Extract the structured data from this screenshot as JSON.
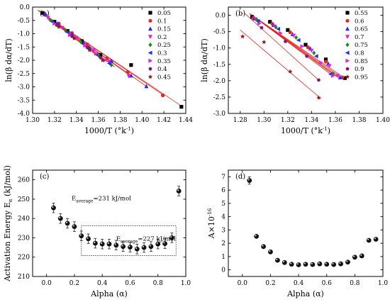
{
  "chart_data": [
    {
      "id": "a",
      "type": "scatter",
      "panel_label": "(a)",
      "xlabel": "1000/T (°k",
      "xlabel_sup": "-1",
      "xlabel_end": ")",
      "ylabel": "ln(β dα/dT)",
      "xlim": [
        1.3,
        1.44
      ],
      "ylim": [
        -4.0,
        0.0
      ],
      "xticks": [
        "1.30",
        "1.32",
        "1.34",
        "1.36",
        "1.38",
        "1.40",
        "1.42",
        "1.44"
      ],
      "yticks": [
        "0.0",
        "-0.5",
        "-1.0",
        "-1.5",
        "-2.0",
        "-2.5",
        "-3.0",
        "-3.5",
        "-4.0"
      ],
      "legend_position": "top-right",
      "series": [
        {
          "name": "0.05",
          "color": "#000000",
          "marker": "square",
          "x": [
            1.309,
            1.32,
            1.332,
            1.345,
            1.362,
            1.39,
            1.436
          ],
          "y": [
            -0.22,
            -0.55,
            -0.9,
            -1.28,
            -1.8,
            -2.18,
            -3.75
          ],
          "fit": [
            [
              1.305,
              -0.12
            ],
            [
              1.436,
              -3.72
            ]
          ]
        },
        {
          "name": "0.1",
          "color": "#e8261f",
          "marker": "circle",
          "x": [
            1.312,
            1.324,
            1.336,
            1.35,
            1.368,
            1.387,
            1.419
          ],
          "y": [
            -0.3,
            -0.62,
            -0.98,
            -1.4,
            -1.92,
            -2.45,
            -3.32
          ],
          "fit": [
            [
              1.305,
              -0.12
            ],
            [
              1.42,
              -3.32
            ]
          ]
        },
        {
          "name": "0.15",
          "color": "#1f2fe8",
          "marker": "triangle-up",
          "x": [
            1.311,
            1.323,
            1.336,
            1.352,
            1.372,
            1.39,
            1.404
          ],
          "y": [
            -0.27,
            -0.62,
            -1.02,
            -1.52,
            -2.02,
            -2.58,
            -2.98
          ],
          "fit": [
            [
              1.305,
              -0.12
            ],
            [
              1.404,
              -2.98
            ]
          ]
        },
        {
          "name": "0.2",
          "color": "#e020e0",
          "marker": "triangle-down",
          "x": [
            1.314,
            1.327,
            1.34,
            1.356,
            1.37,
            1.388
          ],
          "y": [
            -0.4,
            -0.78,
            -1.15,
            -1.62,
            -2.05,
            -2.6
          ],
          "fit": [
            [
              1.305,
              -0.12
            ],
            [
              1.39,
              -2.6
            ]
          ]
        },
        {
          "name": "0.25",
          "color": "#1e8a1e",
          "marker": "diamond",
          "x": [
            1.316,
            1.33,
            1.344,
            1.36,
            1.372
          ],
          "y": [
            -0.48,
            -0.88,
            -1.3,
            -1.8,
            -2.18
          ],
          "fit": [
            [
              1.305,
              -0.12
            ],
            [
              1.375,
              -2.25
            ]
          ]
        },
        {
          "name": "0.3",
          "color": "#1f2fe8",
          "marker": "triangle-left",
          "x": [
            1.318,
            1.332,
            1.346,
            1.358,
            1.37
          ],
          "y": [
            -0.55,
            -0.95,
            -1.38,
            -1.78,
            -2.12
          ],
          "fit": [
            [
              1.305,
              -0.12
            ],
            [
              1.372,
              -2.15
            ]
          ]
        },
        {
          "name": "0.35",
          "color": "#e020e0",
          "marker": "triangle-right",
          "x": [
            1.32,
            1.334,
            1.348,
            1.358,
            1.366
          ],
          "y": [
            -0.62,
            -1.05,
            -1.45,
            -1.75,
            -2.0
          ],
          "fit": [
            [
              1.305,
              -0.12
            ],
            [
              1.368,
              -2.05
            ]
          ]
        },
        {
          "name": "0.4",
          "color": "#7a1a7a",
          "marker": "hexagon",
          "x": [
            1.322,
            1.336,
            1.35,
            1.362
          ],
          "y": [
            -0.68,
            -1.1,
            -1.52,
            -1.9
          ],
          "fit": [
            [
              1.305,
              -0.12
            ],
            [
              1.364,
              -1.95
            ]
          ]
        },
        {
          "name": "0.45",
          "color": "#8b1a1a",
          "marker": "star",
          "x": [
            1.324,
            1.338,
            1.352,
            1.364
          ],
          "y": [
            -0.75,
            -1.18,
            -1.62,
            -2.0
          ],
          "fit": [
            [
              1.305,
              -0.12
            ],
            [
              1.366,
              -2.05
            ]
          ]
        }
      ]
    },
    {
      "id": "b",
      "type": "scatter",
      "panel_label": "(b)",
      "xlabel": "1000/T (°k",
      "xlabel_sup": "-1",
      "xlabel_end": ")",
      "ylabel": "ln(β dα/dT)",
      "xlim": [
        1.27,
        1.4
      ],
      "ylim": [
        -3.0,
        0.25
      ],
      "xticks": [
        "1.28",
        "1.30",
        "1.32",
        "1.34",
        "1.36",
        "1.38",
        "1.40"
      ],
      "yticks": [
        "0.0",
        "-0.5",
        "-1.0",
        "-1.5",
        "-2.0",
        "-2.5",
        "-3.0"
      ],
      "legend_position": "top-right",
      "series": [
        {
          "name": "0.55",
          "color": "#000000",
          "marker": "square",
          "x": [
            1.29,
            1.305,
            1.32,
            1.335,
            1.352,
            1.368
          ],
          "y": [
            -0.05,
            -0.2,
            -0.45,
            -0.9,
            -1.35,
            -1.92
          ],
          "fit": [
            [
              1.288,
              0.05
            ],
            [
              1.368,
              -1.92
            ]
          ]
        },
        {
          "name": "0.6",
          "color": "#e8261f",
          "marker": "circle",
          "x": [
            1.291,
            1.307,
            1.322,
            1.337,
            1.352,
            1.366
          ],
          "y": [
            -0.08,
            -0.26,
            -0.52,
            -0.98,
            -1.42,
            -1.9
          ],
          "fit": [
            [
              1.288,
              0.05
            ],
            [
              1.366,
              -1.92
            ]
          ]
        },
        {
          "name": "0.65",
          "color": "#1f2fe8",
          "marker": "triangle-up",
          "x": [
            1.292,
            1.308,
            1.324,
            1.339,
            1.354,
            1.364
          ],
          "y": [
            -0.1,
            -0.3,
            -0.58,
            -1.02,
            -1.48,
            -1.9
          ],
          "fit": [
            [
              1.288,
              0.05
            ],
            [
              1.364,
              -1.92
            ]
          ]
        },
        {
          "name": "0.7",
          "color": "#e020e0",
          "marker": "triangle-down",
          "x": [
            1.293,
            1.309,
            1.325,
            1.34,
            1.355,
            1.362
          ],
          "y": [
            -0.12,
            -0.34,
            -0.62,
            -1.08,
            -1.55,
            -1.85
          ],
          "fit": [
            [
              1.288,
              0.05
            ],
            [
              1.362,
              -1.9
            ]
          ]
        },
        {
          "name": "0.75",
          "color": "#1e8a1e",
          "marker": "diamond",
          "x": [
            1.294,
            1.31,
            1.327,
            1.342,
            1.358
          ],
          "y": [
            -0.14,
            -0.36,
            -0.68,
            -1.15,
            -1.78
          ],
          "fit": [
            [
              1.288,
              0.05
            ],
            [
              1.36,
              -1.85
            ]
          ]
        },
        {
          "name": "0.8",
          "color": "#1f2fe8",
          "marker": "triangle-left",
          "x": [
            1.295,
            1.312,
            1.329,
            1.344,
            1.356
          ],
          "y": [
            -0.18,
            -0.42,
            -0.76,
            -1.25,
            -1.8
          ],
          "fit": [
            [
              1.288,
              0.05
            ],
            [
              1.358,
              -1.85
            ]
          ]
        },
        {
          "name": "0.85",
          "color": "#e020e0",
          "marker": "triangle-right",
          "x": [
            1.296,
            1.314,
            1.332,
            1.348,
            1.358
          ],
          "y": [
            -0.25,
            -0.55,
            -0.95,
            -1.45,
            -1.85
          ],
          "fit": [
            [
              1.288,
              0.05
            ],
            [
              1.358,
              -1.85
            ]
          ]
        },
        {
          "name": "0.9",
          "color": "#7a1a7a",
          "marker": "hexagon",
          "x": [
            1.298,
            1.318,
            1.336,
            1.346
          ],
          "y": [
            -0.38,
            -0.8,
            -1.25,
            -1.98
          ],
          "fit": [
            [
              1.284,
              0.05
            ],
            [
              1.346,
              -1.98
            ]
          ]
        },
        {
          "name": "0.95",
          "color": "#8b1a1a",
          "marker": "star",
          "x": [
            1.282,
            1.3,
            1.322,
            1.346
          ],
          "y": [
            -0.65,
            -0.82,
            -1.72,
            -2.52
          ],
          "fit": [
            [
              1.28,
              -0.45
            ],
            [
              1.348,
              -2.55
            ]
          ]
        }
      ]
    },
    {
      "id": "c",
      "type": "scatter",
      "panel_label": "(c)",
      "xlabel": "Alpha (α)",
      "ylabel": "Activation Energy E",
      "ylabel_sub": "α",
      "ylabel_end": " (kJ/mol)",
      "xlim": [
        -0.1,
        1.0
      ],
      "ylim": [
        210,
        265
      ],
      "xticks": [
        "0.0",
        "0.2",
        "0.4",
        "0.6",
        "0.8",
        "1.0"
      ],
      "yticks": [
        "210",
        "220",
        "230",
        "240",
        "250",
        "260"
      ],
      "x": [
        0.05,
        0.1,
        0.15,
        0.2,
        0.25,
        0.3,
        0.35,
        0.4,
        0.45,
        0.5,
        0.55,
        0.6,
        0.65,
        0.7,
        0.75,
        0.8,
        0.85,
        0.9,
        0.95
      ],
      "y": [
        245.5,
        240.0,
        237.5,
        235.8,
        231.0,
        229.5,
        227.2,
        226.8,
        226.8,
        226.2,
        225.5,
        225.2,
        224.2,
        225.0,
        225.5,
        226.8,
        227.0,
        230.0,
        254.2
      ],
      "error": 2.5,
      "annotations": [
        {
          "label": "E",
          "sub": "average",
          "text": "=231 kJ/mol",
          "x": 0.18,
          "y": 249.5
        },
        {
          "label": "E",
          "sub": "average",
          "text": "=227 kJ/mol",
          "x": 0.5,
          "y": 228.5
        }
      ],
      "box": {
        "x0": 0.25,
        "x1": 0.93,
        "y0": 220.8,
        "y1": 236.2
      }
    },
    {
      "id": "d",
      "type": "scatter",
      "panel_label": "(d)",
      "xlabel": "Alpha (α)",
      "ylabel": "A×10",
      "ylabel_sup": "-16",
      "xlim": [
        -0.1,
        1.0
      ],
      "ylim": [
        -0.5,
        7.5
      ],
      "xticks": [
        "0.0",
        "0.2",
        "0.4",
        "0.6",
        "0.8",
        "1.0"
      ],
      "yticks": [
        "0",
        "1",
        "2",
        "3",
        "4",
        "5",
        "6",
        "7"
      ],
      "x": [
        0.05,
        0.1,
        0.15,
        0.2,
        0.25,
        0.3,
        0.35,
        0.4,
        0.45,
        0.5,
        0.55,
        0.6,
        0.65,
        0.7,
        0.75,
        0.8,
        0.85,
        0.9,
        0.95
      ],
      "y": [
        6.72,
        2.52,
        1.75,
        1.35,
        0.72,
        0.55,
        0.42,
        0.38,
        0.42,
        0.4,
        0.45,
        0.42,
        0.4,
        0.45,
        0.58,
        0.95,
        1.05,
        2.22,
        2.3
      ]
    }
  ]
}
